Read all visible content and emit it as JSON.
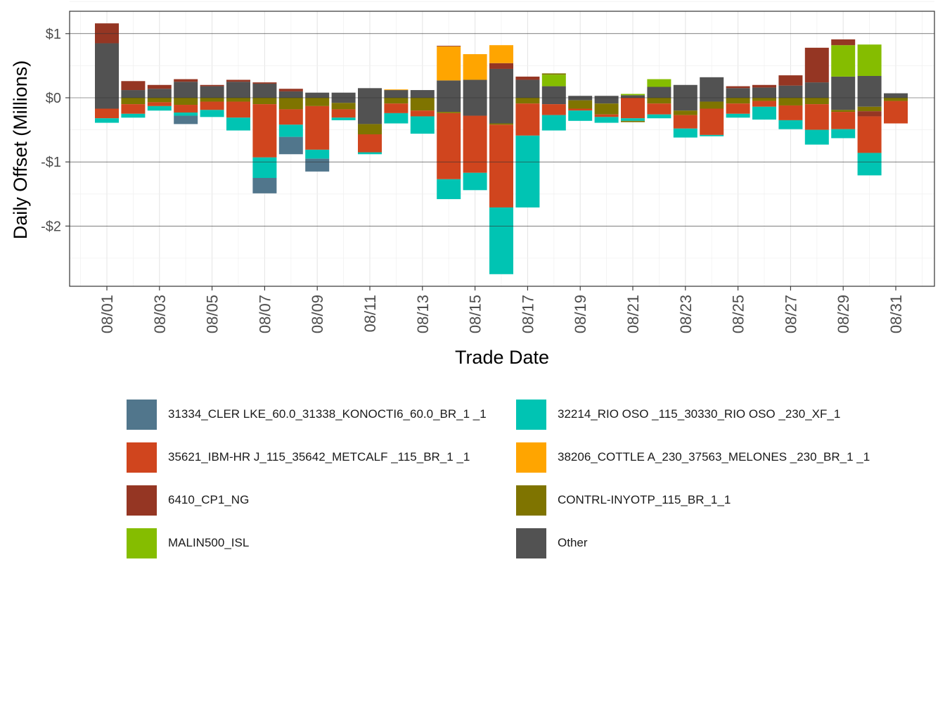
{
  "chart_data": {
    "type": "bar",
    "stacked": true,
    "title": "",
    "xlabel": "Trade Date",
    "ylabel": "Daily Offset (Millions)",
    "ylim": [
      -2.9,
      1.35
    ],
    "y_ticks": [
      1,
      0,
      -1,
      -2
    ],
    "y_tick_labels": [
      "$1",
      "$0",
      "-$1",
      "-$2"
    ],
    "x_tick_labels": [
      "08/01",
      "08/03",
      "08/05",
      "08/07",
      "08/09",
      "08/11",
      "08/13",
      "08/15",
      "08/17",
      "08/19",
      "08/21",
      "08/23",
      "08/25",
      "08/27",
      "08/29",
      "08/31"
    ],
    "x_tick_days": [
      1,
      3,
      5,
      7,
      9,
      11,
      13,
      15,
      17,
      19,
      21,
      23,
      25,
      27,
      29,
      31
    ],
    "grid": true,
    "series_colors": {
      "31334": "#51768c",
      "35621": "#d0451e",
      "6410": "#953623",
      "MALIN": "#85bd00",
      "32214": "#00c4b3",
      "38206": "#ffa500",
      "CONTRL": "#7f7400",
      "Other": "#525252"
    },
    "legend": [
      {
        "key": "31334",
        "label": "31334_CLER LKE_60.0_31338_KONOCTI6_60.0_BR_1 _1"
      },
      {
        "key": "32214",
        "label": "32214_RIO OSO _115_30330_RIO OSO _230_XF_1"
      },
      {
        "key": "35621",
        "label": "35621_IBM-HR J_115_35642_METCALF _115_BR_1 _1"
      },
      {
        "key": "38206",
        "label": "38206_COTTLE A_230_37563_MELONES _230_BR_1 _1"
      },
      {
        "key": "6410",
        "label": "6410_CP1_NG"
      },
      {
        "key": "CONTRL",
        "label": "CONTRL-INYOTP_115_BR_1_1"
      },
      {
        "key": "MALIN",
        "label": "MALIN500_ISL"
      },
      {
        "key": "Other",
        "label": "Other"
      }
    ],
    "days": [
      {
        "day": 1,
        "pos": [
          [
            "Other",
            0.85
          ],
          [
            "6410",
            0.31
          ]
        ],
        "neg": [
          [
            "Other",
            -0.17
          ],
          [
            "35621",
            -0.15
          ],
          [
            "32214",
            -0.07
          ]
        ]
      },
      {
        "day": 2,
        "pos": [
          [
            "Other",
            0.12
          ],
          [
            "6410",
            0.14
          ]
        ],
        "neg": [
          [
            "CONTRL",
            -0.1
          ],
          [
            "35621",
            -0.15
          ],
          [
            "32214",
            -0.06
          ]
        ]
      },
      {
        "day": 3,
        "pos": [
          [
            "Other",
            0.14
          ],
          [
            "6410",
            0.06
          ]
        ],
        "neg": [
          [
            "CONTRL",
            -0.07
          ],
          [
            "35621",
            -0.06
          ],
          [
            "32214",
            -0.07
          ]
        ]
      },
      {
        "day": 4,
        "pos": [
          [
            "Other",
            0.25
          ],
          [
            "6410",
            0.04
          ]
        ],
        "neg": [
          [
            "CONTRL",
            -0.11
          ],
          [
            "35621",
            -0.12
          ],
          [
            "32214",
            -0.05
          ],
          [
            "31334",
            -0.13
          ]
        ]
      },
      {
        "day": 5,
        "pos": [
          [
            "Other",
            0.18
          ],
          [
            "6410",
            0.02
          ]
        ],
        "neg": [
          [
            "CONTRL",
            -0.06
          ],
          [
            "35621",
            -0.13
          ],
          [
            "32214",
            -0.11
          ]
        ]
      },
      {
        "day": 6,
        "pos": [
          [
            "Other",
            0.25
          ],
          [
            "6410",
            0.03
          ]
        ],
        "neg": [
          [
            "CONTRL",
            -0.06
          ],
          [
            "35621",
            -0.25
          ],
          [
            "32214",
            -0.2
          ]
        ]
      },
      {
        "day": 7,
        "pos": [
          [
            "Other",
            0.22
          ],
          [
            "6410",
            0.02
          ]
        ],
        "neg": [
          [
            "CONTRL",
            -0.1
          ],
          [
            "35621",
            -0.83
          ],
          [
            "32214",
            -0.32
          ],
          [
            "31334",
            -0.24
          ]
        ]
      },
      {
        "day": 8,
        "pos": [
          [
            "Other",
            0.1
          ],
          [
            "6410",
            0.04
          ]
        ],
        "neg": [
          [
            "CONTRL",
            -0.18
          ],
          [
            "35621",
            -0.24
          ],
          [
            "32214",
            -0.19
          ],
          [
            "31334",
            -0.27
          ]
        ]
      },
      {
        "day": 9,
        "pos": [
          [
            "Other",
            0.08
          ]
        ],
        "neg": [
          [
            "CONTRL",
            -0.13
          ],
          [
            "35621",
            -0.68
          ],
          [
            "32214",
            -0.14
          ],
          [
            "31334",
            -0.2
          ]
        ]
      },
      {
        "day": 10,
        "pos": [
          [
            "Other",
            0.08
          ]
        ],
        "neg": [
          [
            "Other",
            -0.08
          ],
          [
            "CONTRL",
            -0.1
          ],
          [
            "35621",
            -0.13
          ],
          [
            "32214",
            -0.04
          ]
        ]
      },
      {
        "day": 11,
        "pos": [
          [
            "Other",
            0.15
          ]
        ],
        "neg": [
          [
            "Other",
            -0.41
          ],
          [
            "CONTRL",
            -0.16
          ],
          [
            "35621",
            -0.28
          ],
          [
            "32214",
            -0.03
          ]
        ]
      },
      {
        "day": 12,
        "pos": [
          [
            "Other",
            0.12
          ],
          [
            "38206",
            0.01
          ]
        ],
        "neg": [
          [
            "CONTRL",
            -0.09
          ],
          [
            "35621",
            -0.15
          ],
          [
            "32214",
            -0.16
          ]
        ]
      },
      {
        "day": 13,
        "pos": [
          [
            "Other",
            0.12
          ]
        ],
        "neg": [
          [
            "CONTRL",
            -0.2
          ],
          [
            "35621",
            -0.09
          ],
          [
            "32214",
            -0.27
          ]
        ]
      },
      {
        "day": 14,
        "pos": [
          [
            "Other",
            0.27
          ],
          [
            "38206",
            0.53
          ],
          [
            "6410",
            0.01
          ]
        ],
        "neg": [
          [
            "Other",
            -0.22
          ],
          [
            "CONTRL",
            -0.02
          ],
          [
            "35621",
            -1.03
          ],
          [
            "32214",
            -0.31
          ]
        ]
      },
      {
        "day": 15,
        "pos": [
          [
            "Other",
            0.28
          ],
          [
            "38206",
            0.4
          ]
        ],
        "neg": [
          [
            "Other",
            -0.28
          ],
          [
            "35621",
            -0.89
          ],
          [
            "32214",
            -0.27
          ]
        ]
      },
      {
        "day": 16,
        "pos": [
          [
            "Other",
            0.45
          ],
          [
            "6410",
            0.09
          ],
          [
            "38206",
            0.28
          ]
        ],
        "neg": [
          [
            "Other",
            -0.4
          ],
          [
            "CONTRL",
            -0.02
          ],
          [
            "35621",
            -1.29
          ],
          [
            "32214",
            -1.04
          ]
        ]
      },
      {
        "day": 17,
        "pos": [
          [
            "Other",
            0.28
          ],
          [
            "6410",
            0.05
          ]
        ],
        "neg": [
          [
            "CONTRL",
            -0.09
          ],
          [
            "35621",
            -0.5
          ],
          [
            "32214",
            -1.12
          ]
        ]
      },
      {
        "day": 18,
        "pos": [
          [
            "Other",
            0.18
          ],
          [
            "MALIN",
            0.18
          ],
          [
            "CONTRL",
            0.02
          ]
        ],
        "neg": [
          [
            "Other",
            -0.1
          ],
          [
            "35621",
            -0.17
          ],
          [
            "32214",
            -0.24
          ]
        ]
      },
      {
        "day": 19,
        "pos": [
          [
            "Other",
            0.03
          ]
        ],
        "neg": [
          [
            "Other",
            -0.04
          ],
          [
            "CONTRL",
            -0.13
          ],
          [
            "35621",
            -0.03
          ],
          [
            "32214",
            -0.16
          ]
        ]
      },
      {
        "day": 20,
        "pos": [
          [
            "Other",
            0.03
          ]
        ],
        "neg": [
          [
            "Other",
            -0.09
          ],
          [
            "CONTRL",
            -0.17
          ],
          [
            "35621",
            -0.04
          ],
          [
            "32214",
            -0.09
          ]
        ]
      },
      {
        "day": 21,
        "pos": [
          [
            "Other",
            0.04
          ],
          [
            "MALIN",
            0.02
          ]
        ],
        "neg": [
          [
            "35621",
            -0.32
          ],
          [
            "32214",
            -0.04
          ],
          [
            "CONTRL",
            -0.02
          ]
        ]
      },
      {
        "day": 22,
        "pos": [
          [
            "Other",
            0.17
          ],
          [
            "MALIN",
            0.12
          ]
        ],
        "neg": [
          [
            "CONTRL",
            -0.09
          ],
          [
            "35621",
            -0.17
          ],
          [
            "32214",
            -0.06
          ]
        ]
      },
      {
        "day": 23,
        "pos": [
          [
            "Other",
            0.2
          ]
        ],
        "neg": [
          [
            "Other",
            -0.2
          ],
          [
            "CONTRL",
            -0.07
          ],
          [
            "35621",
            -0.21
          ],
          [
            "32214",
            -0.14
          ]
        ]
      },
      {
        "day": 24,
        "pos": [
          [
            "Other",
            0.32
          ]
        ],
        "neg": [
          [
            "Other",
            -0.06
          ],
          [
            "CONTRL",
            -0.11
          ],
          [
            "35621",
            -0.41
          ],
          [
            "32214",
            -0.02
          ]
        ]
      },
      {
        "day": 25,
        "pos": [
          [
            "Other",
            0.15
          ],
          [
            "6410",
            0.03
          ]
        ],
        "neg": [
          [
            "CONTRL",
            -0.09
          ],
          [
            "35621",
            -0.16
          ],
          [
            "32214",
            -0.06
          ]
        ]
      },
      {
        "day": 26,
        "pos": [
          [
            "Other",
            0.16
          ],
          [
            "6410",
            0.04
          ]
        ],
        "neg": [
          [
            "CONTRL",
            -0.05
          ],
          [
            "35621",
            -0.09
          ],
          [
            "32214",
            -0.2
          ]
        ]
      },
      {
        "day": 27,
        "pos": [
          [
            "Other",
            0.19
          ],
          [
            "6410",
            0.16
          ]
        ],
        "neg": [
          [
            "CONTRL",
            -0.12
          ],
          [
            "35621",
            -0.23
          ],
          [
            "32214",
            -0.14
          ]
        ]
      },
      {
        "day": 28,
        "pos": [
          [
            "Other",
            0.24
          ],
          [
            "6410",
            0.54
          ]
        ],
        "neg": [
          [
            "CONTRL",
            -0.1
          ],
          [
            "35621",
            -0.4
          ],
          [
            "32214",
            -0.23
          ]
        ]
      },
      {
        "day": 29,
        "pos": [
          [
            "Other",
            0.33
          ],
          [
            "MALIN",
            0.49
          ],
          [
            "6410",
            0.09
          ]
        ],
        "neg": [
          [
            "Other",
            -0.19
          ],
          [
            "CONTRL",
            -0.03
          ],
          [
            "35621",
            -0.27
          ],
          [
            "32214",
            -0.14
          ]
        ]
      },
      {
        "day": 30,
        "pos": [
          [
            "Other",
            0.34
          ],
          [
            "MALIN",
            0.49
          ]
        ],
        "neg": [
          [
            "Other",
            -0.14
          ],
          [
            "CONTRL",
            -0.07
          ],
          [
            "6410",
            -0.08
          ],
          [
            "35621",
            -0.57
          ],
          [
            "32214",
            -0.35
          ]
        ]
      },
      {
        "day": 31,
        "pos": [
          [
            "Other",
            0.07
          ]
        ],
        "neg": [
          [
            "CONTRL",
            -0.05
          ],
          [
            "35621",
            -0.35
          ]
        ]
      }
    ]
  }
}
